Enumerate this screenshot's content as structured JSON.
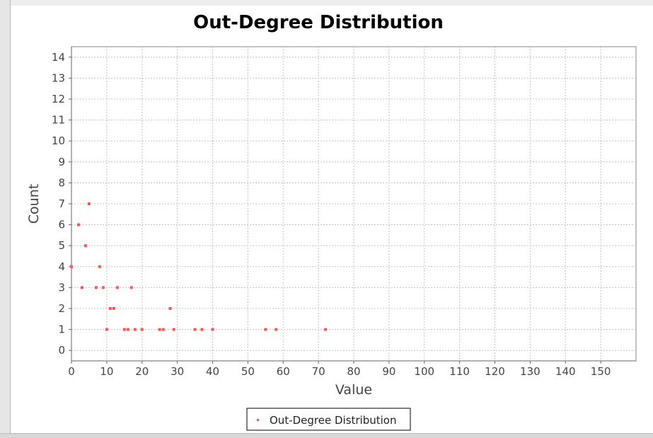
{
  "chart_data": {
    "type": "scatter",
    "title": "Out-Degree Distribution",
    "xlabel": "Value",
    "ylabel": "Count",
    "xlim": [
      0,
      160
    ],
    "ylim": [
      -0.5,
      14.5
    ],
    "x_ticks": [
      0,
      10,
      20,
      30,
      40,
      50,
      60,
      70,
      80,
      90,
      100,
      110,
      120,
      130,
      140,
      150
    ],
    "y_ticks": [
      0,
      1,
      2,
      3,
      4,
      5,
      6,
      7,
      8,
      9,
      10,
      11,
      12,
      13,
      14
    ],
    "grid": true,
    "legend_position": "bottom-center",
    "series": [
      {
        "name": "Out-Degree Distribution",
        "color": "#ff5555",
        "points": [
          [
            0,
            4
          ],
          [
            2,
            6
          ],
          [
            3,
            3
          ],
          [
            4,
            5
          ],
          [
            5,
            7
          ],
          [
            7,
            3
          ],
          [
            8,
            4
          ],
          [
            9,
            3
          ],
          [
            10,
            1
          ],
          [
            11,
            2
          ],
          [
            12,
            2
          ],
          [
            13,
            3
          ],
          [
            15,
            1
          ],
          [
            16,
            1
          ],
          [
            17,
            3
          ],
          [
            18,
            1
          ],
          [
            20,
            1
          ],
          [
            25,
            1
          ],
          [
            26,
            1
          ],
          [
            28,
            2
          ],
          [
            29,
            1
          ],
          [
            35,
            1
          ],
          [
            37,
            1
          ],
          [
            40,
            1
          ],
          [
            55,
            1
          ],
          [
            58,
            1
          ],
          [
            72,
            1
          ]
        ]
      }
    ]
  }
}
